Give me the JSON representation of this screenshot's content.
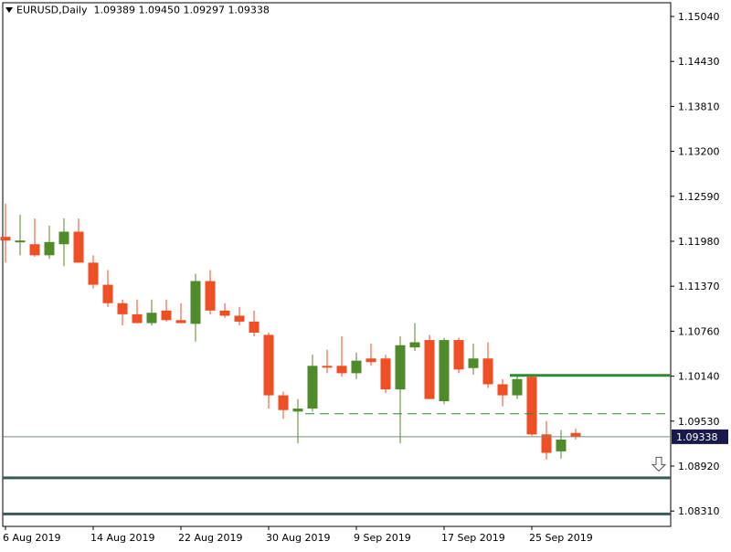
{
  "header": {
    "symbol": "EURUSD,Daily",
    "ohlc": "1.09389 1.09450 1.09297 1.09338"
  },
  "colors": {
    "bull": "#4f8a2b",
    "bear": "#f04e23",
    "wick": "#4f8a2b",
    "grid_line": "#3a5a5a",
    "resistance": "#2e8b2e",
    "current_price_bg": "#1a1a4a"
  },
  "chart_data": {
    "type": "candlestick",
    "ylim": [
      1.08,
      1.153
    ],
    "y_ticks": [
      "1.15040",
      "1.14430",
      "1.13810",
      "1.13200",
      "1.12590",
      "1.11980",
      "1.11370",
      "1.10760",
      "1.10140",
      "1.09530",
      "1.08920",
      "1.08310"
    ],
    "x_labels": [
      "6 Aug 2019",
      "14 Aug 2019",
      "22 Aug 2019",
      "30 Aug 2019",
      "9 Sep 2019",
      "17 Sep 2019",
      "25 Sep 2019"
    ],
    "current_price": "1.09338",
    "candles": [
      {
        "o": 1.1205,
        "h": 1.125,
        "l": 1.117,
        "c": 1.12
      },
      {
        "o": 1.1198,
        "h": 1.1235,
        "l": 1.118,
        "c": 1.12
      },
      {
        "o": 1.1195,
        "h": 1.123,
        "l": 1.1178,
        "c": 1.118
      },
      {
        "o": 1.118,
        "h": 1.122,
        "l": 1.1175,
        "c": 1.1198
      },
      {
        "o": 1.1195,
        "h": 1.123,
        "l": 1.1165,
        "c": 1.1212
      },
      {
        "o": 1.1212,
        "h": 1.123,
        "l": 1.117,
        "c": 1.117
      },
      {
        "o": 1.117,
        "h": 1.118,
        "l": 1.1135,
        "c": 1.114
      },
      {
        "o": 1.114,
        "h": 1.116,
        "l": 1.111,
        "c": 1.1115
      },
      {
        "o": 1.1115,
        "h": 1.112,
        "l": 1.1085,
        "c": 1.11
      },
      {
        "o": 1.11,
        "h": 1.112,
        "l": 1.109,
        "c": 1.1088
      },
      {
        "o": 1.1088,
        "h": 1.112,
        "l": 1.1085,
        "c": 1.1102
      },
      {
        "o": 1.1105,
        "h": 1.112,
        "l": 1.109,
        "c": 1.1092
      },
      {
        "o": 1.1092,
        "h": 1.1115,
        "l": 1.109,
        "c": 1.1088
      },
      {
        "o": 1.1087,
        "h": 1.1155,
        "l": 1.1063,
        "c": 1.1145
      },
      {
        "o": 1.1145,
        "h": 1.116,
        "l": 1.11,
        "c": 1.1105
      },
      {
        "o": 1.1105,
        "h": 1.1115,
        "l": 1.1095,
        "c": 1.1098
      },
      {
        "o": 1.1098,
        "h": 1.111,
        "l": 1.1085,
        "c": 1.109
      },
      {
        "o": 1.109,
        "h": 1.1105,
        "l": 1.107,
        "c": 1.1075
      },
      {
        "o": 1.1072,
        "h": 1.1075,
        "l": 1.0972,
        "c": 1.099
      },
      {
        "o": 1.099,
        "h": 1.0995,
        "l": 1.0958,
        "c": 1.097
      },
      {
        "o": 1.0968,
        "h": 1.0985,
        "l": 1.0925,
        "c": 1.0972
      },
      {
        "o": 1.0972,
        "h": 1.1045,
        "l": 1.0968,
        "c": 1.103
      },
      {
        "o": 1.103,
        "h": 1.1052,
        "l": 1.102,
        "c": 1.1028
      },
      {
        "o": 1.103,
        "h": 1.107,
        "l": 1.1015,
        "c": 1.102
      },
      {
        "o": 1.102,
        "h": 1.1048,
        "l": 1.1012,
        "c": 1.1037
      },
      {
        "o": 1.104,
        "h": 1.106,
        "l": 1.103,
        "c": 1.1035
      },
      {
        "o": 1.104,
        "h": 1.1045,
        "l": 1.0993,
        "c": 1.0998
      },
      {
        "o": 1.0998,
        "h": 1.107,
        "l": 1.0925,
        "c": 1.1058
      },
      {
        "o": 1.1055,
        "h": 1.1088,
        "l": 1.105,
        "c": 1.1062
      },
      {
        "o": 1.1065,
        "h": 1.1072,
        "l": 1.0985,
        "c": 1.0985
      },
      {
        "o": 1.0982,
        "h": 1.1068,
        "l": 1.0978,
        "c": 1.1065
      },
      {
        "o": 1.1065,
        "h": 1.1068,
        "l": 1.102,
        "c": 1.1025
      },
      {
        "o": 1.1027,
        "h": 1.106,
        "l": 1.1018,
        "c": 1.104
      },
      {
        "o": 1.104,
        "h": 1.1062,
        "l": 1.1,
        "c": 1.1005
      },
      {
        "o": 1.1005,
        "h": 1.1012,
        "l": 1.0975,
        "c": 1.099
      },
      {
        "o": 1.099,
        "h": 1.1018,
        "l": 1.0985,
        "c": 1.1012
      },
      {
        "o": 1.1015,
        "h": 1.1018,
        "l": 1.0935,
        "c": 1.0937
      },
      {
        "o": 1.0937,
        "h": 1.0955,
        "l": 1.0903,
        "c": 1.0912
      },
      {
        "o": 1.0914,
        "h": 1.0943,
        "l": 1.0904,
        "c": 1.093
      },
      {
        "o": 1.0939,
        "h": 1.0945,
        "l": 1.093,
        "c": 1.0934
      }
    ],
    "levels": [
      {
        "name": "resistance-level",
        "price": 1.1017,
        "style": "solid-green-thick",
        "start_index": 35
      },
      {
        "name": "dashed-level",
        "price": 1.0965,
        "style": "dashed-green",
        "start_index": 21
      },
      {
        "name": "current-price-line",
        "price": 1.09338,
        "style": "thin-gray",
        "start_index": 0
      },
      {
        "name": "support-level-1",
        "price": 1.0878,
        "style": "solid-dark-thick",
        "start_index": 0
      },
      {
        "name": "support-level-2",
        "price": 1.0829,
        "style": "solid-dark-thick",
        "start_index": 0
      }
    ],
    "arrow_marker": {
      "icon": "down-arrow-icon",
      "price": 1.0896
    }
  }
}
